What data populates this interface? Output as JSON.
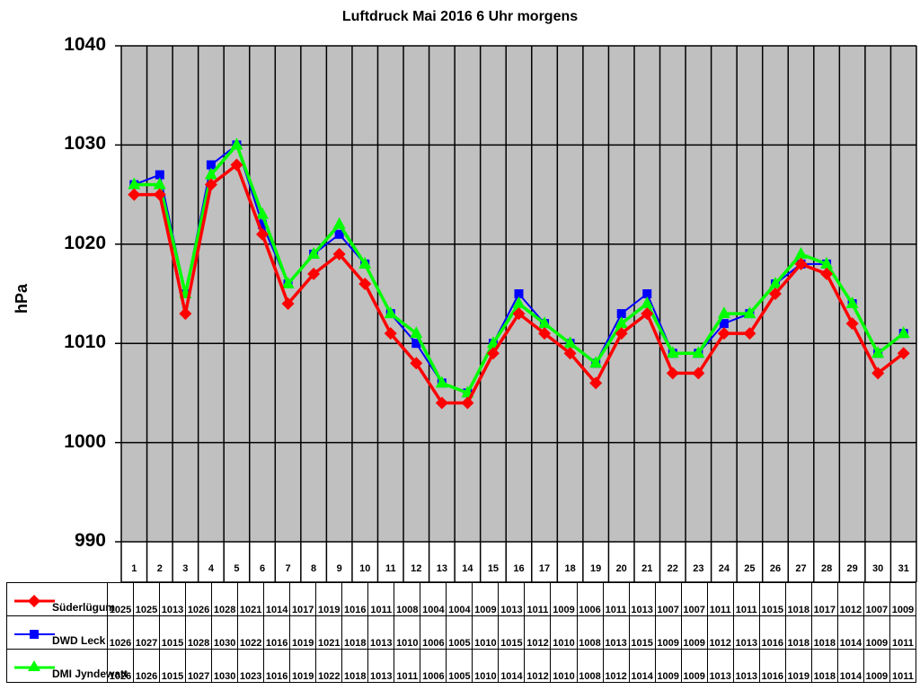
{
  "chart_data": {
    "type": "line",
    "title": "Luftdruck Mai 2016 6 Uhr morgens",
    "xlabel": "",
    "ylabel": "hPa",
    "ylim": [
      990,
      1040
    ],
    "yticks": [
      990,
      1000,
      1010,
      1020,
      1030,
      1040
    ],
    "grid": true,
    "legend_position": "bottom (data table)",
    "categories": [
      "1",
      "2",
      "3",
      "4",
      "5",
      "6",
      "7",
      "8",
      "9",
      "10",
      "11",
      "12",
      "13",
      "14",
      "15",
      "16",
      "17",
      "18",
      "19",
      "20",
      "21",
      "22",
      "23",
      "24",
      "25",
      "26",
      "27",
      "28",
      "29",
      "30",
      "31"
    ],
    "series": [
      {
        "name": "Süderlügum",
        "color": "#ff0000",
        "marker": "diamond",
        "values": [
          1025,
          1025,
          1013,
          1026,
          1028,
          1021,
          1014,
          1017,
          1019,
          1016,
          1011,
          1008,
          1004,
          1004,
          1009,
          1013,
          1011,
          1009,
          1006,
          1011,
          1013,
          1007,
          1007,
          1011,
          1011,
          1015,
          1018,
          1017,
          1012,
          1007,
          1009
        ]
      },
      {
        "name": "DWD Leck",
        "color": "#0000ff",
        "marker": "square",
        "values": [
          1026,
          1027,
          1015,
          1028,
          1030,
          1022,
          1016,
          1019,
          1021,
          1018,
          1013,
          1010,
          1006,
          1005,
          1010,
          1015,
          1012,
          1010,
          1008,
          1013,
          1015,
          1009,
          1009,
          1012,
          1013,
          1016,
          1018,
          1018,
          1014,
          1009,
          1011
        ]
      },
      {
        "name": "DMI Jyndewatt",
        "color": "#00ff00",
        "marker": "triangle",
        "values": [
          1026,
          1026,
          1015,
          1027,
          1030,
          1023,
          1016,
          1019,
          1022,
          1018,
          1013,
          1011,
          1006,
          1005,
          1010,
          1014,
          1012,
          1010,
          1008,
          1012,
          1014,
          1009,
          1009,
          1013,
          1013,
          1016,
          1019,
          1018,
          1014,
          1009,
          1011
        ]
      }
    ]
  },
  "colors": {
    "plot_background": "#c0c0c0",
    "grid": "#000000"
  }
}
